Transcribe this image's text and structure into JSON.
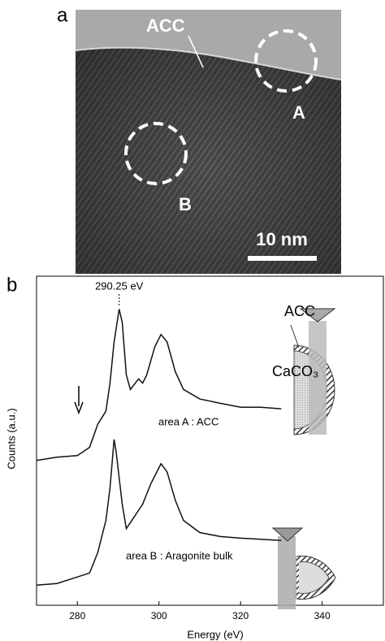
{
  "panel_labels": [
    "a",
    "b"
  ],
  "image_labels": {
    "acc": "ACC",
    "area_a": "A",
    "area_b": "B",
    "scale_bar": "10 nm"
  },
  "inset_labels": {
    "acc": "ACC",
    "caco3": "CaCO₃"
  },
  "chart_data": {
    "type": "line",
    "xlabel": "Energy  (eV)",
    "ylabel": "Counts  (a.u.)",
    "xlim": [
      270,
      355
    ],
    "xticks": [
      280,
      300,
      320,
      340
    ],
    "ylim": [
      0,
      100
    ],
    "annotations": [
      {
        "text": "290.25 eV",
        "x": 290.25
      }
    ],
    "series": [
      {
        "name": "area A : ACC",
        "color": "#111111",
        "x": [
          270,
          275,
          280,
          283,
          285,
          287,
          288,
          289,
          290.25,
          291,
          292,
          293,
          295,
          296,
          297,
          299,
          300.5,
          302,
          304,
          306,
          310,
          315,
          320,
          325,
          330
        ],
        "values": [
          44,
          45,
          45.5,
          48,
          55,
          59,
          67.5,
          80,
          90,
          86,
          70,
          65.6,
          68.8,
          67.5,
          70,
          78.6,
          82.3,
          80,
          71,
          65.6,
          62.7,
          61.4,
          60.2,
          60.2,
          59.7
        ]
      },
      {
        "name": "area B : Aragonite bulk",
        "color": "#111111",
        "x": [
          270,
          275,
          280,
          283,
          285,
          287,
          288,
          289,
          289.5,
          291,
          292,
          294,
          296,
          298,
          300.5,
          302,
          304,
          306,
          310,
          315,
          320,
          330
        ],
        "values": [
          6.1,
          6.6,
          8.6,
          9.8,
          16,
          25.8,
          35.6,
          50.4,
          46.7,
          30.7,
          23.3,
          27,
          30.7,
          36.9,
          43,
          40.5,
          31.9,
          25.8,
          22.1,
          20.9,
          20.4,
          19.7
        ]
      }
    ]
  }
}
